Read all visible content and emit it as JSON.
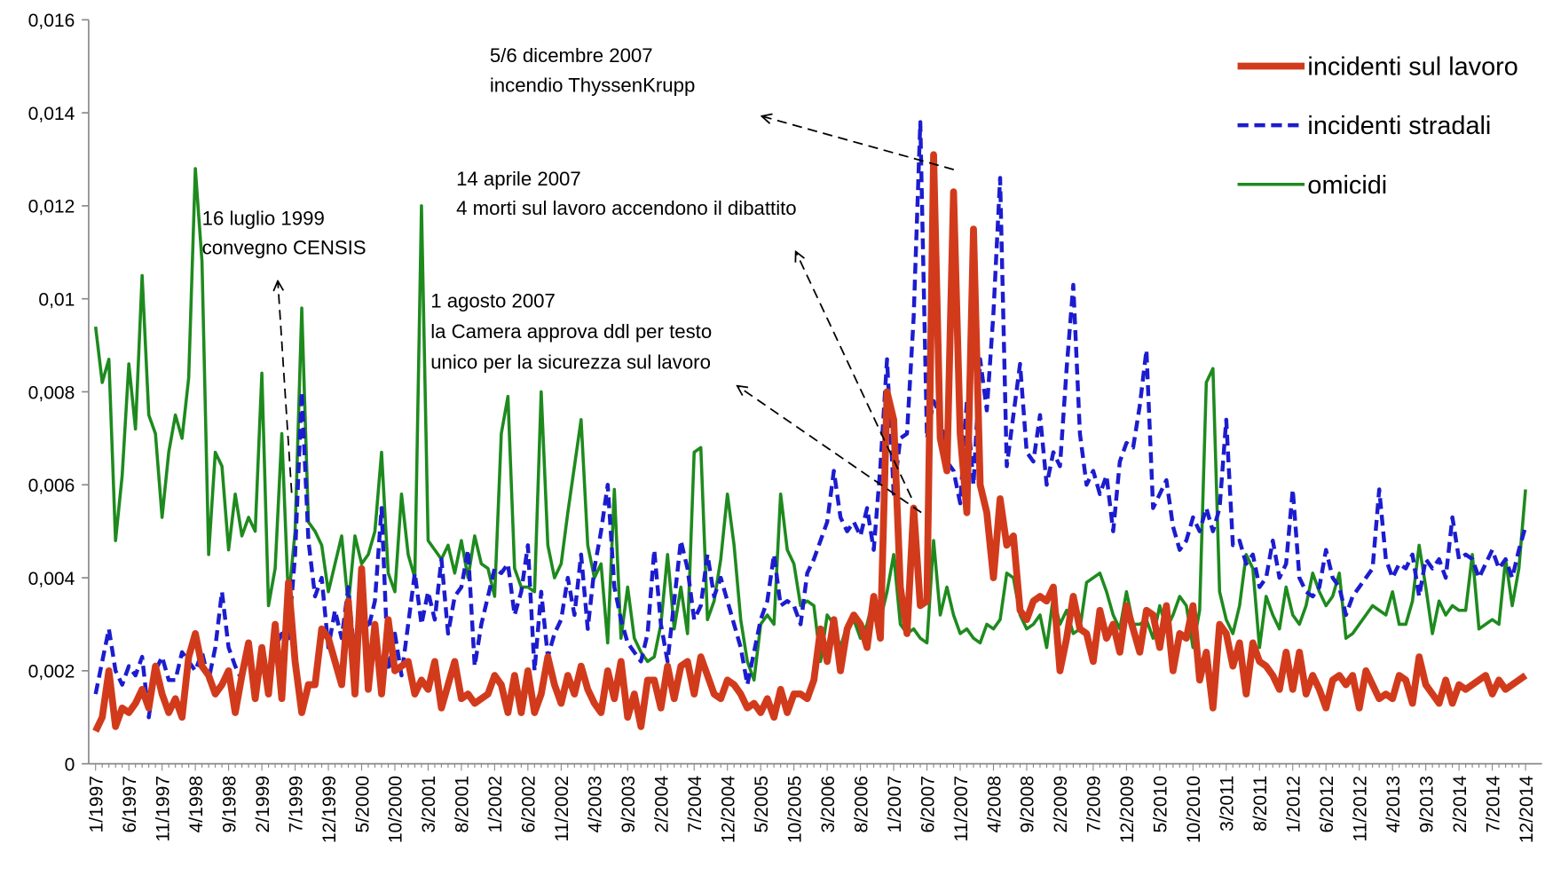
{
  "chart_data": {
    "type": "line",
    "categories": [
      "1/1997",
      null,
      null,
      null,
      null,
      "6/1997",
      null,
      null,
      null,
      null,
      "11/1997",
      null,
      null,
      null,
      null,
      "4/1998",
      null,
      null,
      null,
      null,
      "9/1998",
      null,
      null,
      null,
      null,
      "2/1999",
      null,
      null,
      null,
      null,
      "7/1999",
      null,
      null,
      null,
      null,
      "12/1999",
      null,
      null,
      null,
      null,
      "5/2000",
      null,
      null,
      null,
      null,
      "10/2000",
      null,
      null,
      null,
      null,
      "3/2001",
      null,
      null,
      null,
      null,
      "8/2001",
      null,
      null,
      null,
      null,
      "1/2002",
      null,
      null,
      null,
      null,
      "6/2002",
      null,
      null,
      null,
      null,
      "11/2002",
      null,
      null,
      null,
      null,
      "4/2003",
      null,
      null,
      null,
      null,
      "9/2003",
      null,
      null,
      null,
      null,
      "2/2004",
      null,
      null,
      null,
      null,
      "7/2004",
      null,
      null,
      null,
      null,
      "12/2004",
      null,
      null,
      null,
      null,
      "5/2005",
      null,
      null,
      null,
      null,
      "10/2005",
      null,
      null,
      null,
      null,
      "3/2006",
      null,
      null,
      null,
      null,
      "8/2006",
      null,
      null,
      null,
      null,
      "1/2007",
      null,
      null,
      null,
      null,
      "6/2007",
      null,
      null,
      null,
      null,
      "11/2007",
      null,
      null,
      null,
      null,
      "4/2008",
      null,
      null,
      null,
      null,
      "9/2008",
      null,
      null,
      null,
      null,
      "2/2009",
      null,
      null,
      null,
      null,
      "7/2009",
      null,
      null,
      null,
      null,
      "12/2009",
      null,
      null,
      null,
      null,
      "5/2010",
      null,
      null,
      null,
      null,
      "10/2010",
      null,
      null,
      null,
      null,
      "3/2011",
      null,
      null,
      null,
      null,
      "8/2011",
      null,
      null,
      null,
      null,
      "1/2012",
      null,
      null,
      null,
      null,
      "6/2012",
      null,
      null,
      null,
      null,
      "11/2012",
      null,
      null,
      null,
      null,
      "4/2013",
      null,
      null,
      null,
      null,
      "9/2013",
      null,
      null,
      null,
      null,
      "2/2014",
      null,
      null,
      null,
      null,
      "7/2014",
      null,
      null,
      null,
      null,
      "12/2014"
    ],
    "series": [
      {
        "name": "incidenti sul lavoro",
        "color": "#d13b1c",
        "style": "solid-thick",
        "values": [
          0.0007,
          0.001,
          0.002,
          0.0008,
          0.0012,
          0.0011,
          0.0013,
          0.0016,
          0.0012,
          0.0021,
          0.0015,
          0.0011,
          0.0014,
          0.001,
          0.0023,
          0.0028,
          0.0021,
          0.0019,
          0.0015,
          0.0017,
          0.002,
          0.0011,
          0.0019,
          0.0026,
          0.0014,
          0.0025,
          0.0015,
          0.003,
          0.0014,
          0.0039,
          0.0022,
          0.0011,
          0.0017,
          0.0017,
          0.0029,
          0.0027,
          0.0022,
          0.0017,
          0.0035,
          0.0015,
          0.0042,
          0.0016,
          0.003,
          0.0015,
          0.0031,
          0.002,
          0.0021,
          0.0022,
          0.0015,
          0.0018,
          0.0016,
          0.0022,
          0.0012,
          0.0017,
          0.0022,
          0.0014,
          0.0015,
          0.0013,
          0.0014,
          0.0015,
          0.0019,
          0.0017,
          0.0011,
          0.0019,
          0.0011,
          0.002,
          0.0011,
          0.0015,
          0.0023,
          0.0017,
          0.0013,
          0.0019,
          0.0015,
          0.0021,
          0.0016,
          0.0013,
          0.0011,
          0.002,
          0.0014,
          0.0022,
          0.001,
          0.0015,
          0.0008,
          0.0018,
          0.0018,
          0.0012,
          0.0021,
          0.0014,
          0.0021,
          0.0022,
          0.0015,
          0.0023,
          0.0019,
          0.0015,
          0.0014,
          0.0018,
          0.0017,
          0.0015,
          0.0012,
          0.0013,
          0.0011,
          0.0014,
          0.001,
          0.0016,
          0.0011,
          0.0015,
          0.0015,
          0.0014,
          0.0018,
          0.0029,
          0.0022,
          0.0031,
          0.002,
          0.0029,
          0.0032,
          0.003,
          0.0025,
          0.0036,
          0.0027,
          0.008,
          0.0074,
          0.0038,
          0.0028,
          0.0055,
          0.0034,
          0.0035,
          0.0131,
          0.007,
          0.0063,
          0.0123,
          0.0071,
          0.0054,
          0.0115,
          0.006,
          0.0054,
          0.004,
          0.0057,
          0.0047,
          0.0049,
          0.0033,
          0.0031,
          0.0035,
          0.0036,
          0.0035,
          0.0038,
          0.002,
          0.0027,
          0.0036,
          0.0029,
          0.0028,
          0.0022,
          0.0033,
          0.0027,
          0.003,
          0.0024,
          0.0034,
          0.0029,
          0.0024,
          0.0033,
          0.0032,
          0.0025,
          0.0034,
          0.002,
          0.0028,
          0.0027,
          0.0034,
          0.0018,
          0.0024,
          0.0012,
          0.003,
          0.0028,
          0.0021,
          0.0026,
          0.0015,
          0.0026,
          0.0022,
          0.0021,
          0.0019,
          0.0016,
          0.0024,
          0.0016,
          0.0024,
          0.0015,
          0.0019,
          0.0016,
          0.0012,
          0.0018,
          0.0019,
          0.0017,
          0.0019,
          0.0012,
          0.002,
          0.0017,
          0.0014,
          0.0015,
          0.0014,
          0.0019,
          0.0018,
          0.0013,
          0.0023,
          0.0017,
          0.0015,
          0.0013,
          0.0018,
          0.0013,
          0.0017,
          0.0016,
          0.0017,
          0.0018,
          0.0019,
          0.0015,
          0.0018,
          0.0016,
          0.0017,
          0.0018,
          0.0019
        ]
      },
      {
        "name": "incidenti stradali",
        "color": "#1c1ccf",
        "style": "dashed",
        "values": [
          0.0015,
          0.0022,
          0.0029,
          0.002,
          0.0017,
          0.0021,
          0.0019,
          0.0023,
          0.001,
          0.002,
          0.0023,
          0.0018,
          0.0018,
          0.0024,
          0.0022,
          0.002,
          0.0024,
          0.0018,
          0.0025,
          0.0037,
          0.0025,
          0.0021,
          0.0018,
          0.0024,
          0.0018,
          0.0022,
          0.0017,
          0.0025,
          0.0028,
          0.0027,
          0.0045,
          0.008,
          0.0048,
          0.0036,
          0.004,
          0.0025,
          0.0033,
          0.0027,
          0.0038,
          0.0022,
          0.0034,
          0.0029,
          0.0035,
          0.0055,
          0.002,
          0.0028,
          0.0019,
          0.003,
          0.0041,
          0.003,
          0.0037,
          0.0031,
          0.0044,
          0.0028,
          0.0036,
          0.0038,
          0.0046,
          0.0021,
          0.003,
          0.0036,
          0.0042,
          0.0041,
          0.0043,
          0.0032,
          0.0037,
          0.0047,
          0.002,
          0.0037,
          0.0023,
          0.0028,
          0.0031,
          0.004,
          0.0032,
          0.0045,
          0.0029,
          0.0042,
          0.005,
          0.006,
          0.0038,
          0.0031,
          0.0026,
          0.0024,
          0.0022,
          0.0028,
          0.0046,
          0.003,
          0.0022,
          0.0035,
          0.0048,
          0.0042,
          0.0031,
          0.0034,
          0.0045,
          0.0036,
          0.004,
          0.0035,
          0.003,
          0.0025,
          0.0017,
          0.0024,
          0.0031,
          0.0035,
          0.0045,
          0.0034,
          0.0035,
          0.0034,
          0.003,
          0.0041,
          0.0044,
          0.0048,
          0.0052,
          0.0063,
          0.0053,
          0.005,
          0.0052,
          0.0049,
          0.0055,
          0.0046,
          0.0064,
          0.0087,
          0.0058,
          0.007,
          0.0071,
          0.0096,
          0.0138,
          0.007,
          0.0078,
          0.0075,
          0.0065,
          0.0063,
          0.0056,
          0.0078,
          0.006,
          0.0087,
          0.0076,
          0.0097,
          0.0126,
          0.0064,
          0.0075,
          0.0086,
          0.0067,
          0.0065,
          0.0075,
          0.006,
          0.0067,
          0.0064,
          0.0085,
          0.0103,
          0.0071,
          0.006,
          0.0063,
          0.0058,
          0.0062,
          0.005,
          0.0065,
          0.0069,
          0.0068,
          0.0077,
          0.0089,
          0.0055,
          0.0058,
          0.0061,
          0.0051,
          0.0046,
          0.0048,
          0.0053,
          0.005,
          0.0055,
          0.005,
          0.0055,
          0.0074,
          0.0047,
          0.0048,
          0.0043,
          0.0045,
          0.0038,
          0.004,
          0.0048,
          0.004,
          0.0043,
          0.0059,
          0.004,
          0.0037,
          0.0036,
          0.0038,
          0.0046,
          0.004,
          0.0038,
          0.0032,
          0.0036,
          0.0038,
          0.004,
          0.0042,
          0.0059,
          0.0044,
          0.004,
          0.0043,
          0.0042,
          0.0045,
          0.0036,
          0.0044,
          0.0042,
          0.0044,
          0.004,
          0.0053,
          0.0044,
          0.0045,
          0.0044,
          0.004,
          0.0043,
          0.0046,
          0.0042,
          0.0044,
          0.004,
          0.0046,
          0.0051
        ]
      },
      {
        "name": "omicidi",
        "color": "#1e8a1e",
        "style": "solid",
        "values": [
          0.0094,
          0.0082,
          0.0087,
          0.0048,
          0.0062,
          0.0086,
          0.0072,
          0.0105,
          0.0075,
          0.0071,
          0.0053,
          0.0067,
          0.0075,
          0.007,
          0.0083,
          0.0128,
          0.0108,
          0.0045,
          0.0067,
          0.0064,
          0.0046,
          0.0058,
          0.0049,
          0.0053,
          0.005,
          0.0084,
          0.0034,
          0.0042,
          0.0071,
          0.0035,
          0.005,
          0.0098,
          0.0052,
          0.005,
          0.0047,
          0.0037,
          0.0043,
          0.0049,
          0.0034,
          0.0049,
          0.0043,
          0.0045,
          0.005,
          0.0067,
          0.0041,
          0.0037,
          0.0058,
          0.0045,
          0.004,
          0.012,
          0.0048,
          0.0046,
          0.0044,
          0.0047,
          0.0041,
          0.0048,
          0.004,
          0.0049,
          0.0043,
          0.0042,
          0.0036,
          0.0071,
          0.0079,
          0.0042,
          0.0038,
          0.0038,
          0.0037,
          0.008,
          0.0047,
          0.004,
          0.0043,
          0.0054,
          0.0064,
          0.0074,
          0.0047,
          0.004,
          0.0043,
          0.0026,
          0.0059,
          0.0027,
          0.0038,
          0.0027,
          0.0024,
          0.0022,
          0.0023,
          0.003,
          0.0045,
          0.0029,
          0.0038,
          0.0028,
          0.0067,
          0.0068,
          0.0031,
          0.0035,
          0.0044,
          0.0058,
          0.0047,
          0.0031,
          0.0022,
          0.0018,
          0.003,
          0.0032,
          0.003,
          0.0058,
          0.0046,
          0.0043,
          0.0034,
          0.0035,
          0.0034,
          0.0022,
          0.0032,
          0.003,
          0.0025,
          0.003,
          0.0031,
          0.0027,
          0.003,
          0.0036,
          0.0031,
          0.0037,
          0.0045,
          0.003,
          0.0028,
          0.0029,
          0.0027,
          0.0026,
          0.0048,
          0.0032,
          0.0038,
          0.0032,
          0.0028,
          0.0029,
          0.0027,
          0.0026,
          0.003,
          0.0029,
          0.0031,
          0.0041,
          0.004,
          0.0032,
          0.0029,
          0.003,
          0.0032,
          0.0025,
          0.0036,
          0.003,
          0.0033,
          0.0028,
          0.0029,
          0.0039,
          0.004,
          0.0041,
          0.0037,
          0.0032,
          0.0029,
          0.0037,
          0.003,
          0.003,
          0.0031,
          0.0027,
          0.0034,
          0.0029,
          0.0032,
          0.0036,
          0.0034,
          0.0025,
          0.0033,
          0.0082,
          0.0085,
          0.0037,
          0.0031,
          0.0028,
          0.0034,
          0.0045,
          0.0042,
          0.0025,
          0.0036,
          0.0032,
          0.0029,
          0.0038,
          0.0032,
          0.003,
          0.0034,
          0.0041,
          0.0037,
          0.0034,
          0.0036,
          0.0041,
          0.0027,
          0.0028,
          0.003,
          0.0032,
          0.0034,
          0.0033,
          0.0032,
          0.0037,
          0.003,
          0.003,
          0.0035,
          0.0047,
          0.0038,
          0.0028,
          0.0035,
          0.0032,
          0.0034,
          0.0033,
          0.0033,
          0.0045,
          0.0029,
          0.003,
          0.0031,
          0.003,
          0.0044,
          0.0034,
          0.0042,
          0.0059
        ]
      }
    ],
    "ylim": [
      0,
      0.016
    ],
    "yticks": [
      0,
      {
        "value": 0.002,
        "label": "0,002"
      },
      {
        "value": 0.004,
        "label": "0,004"
      },
      {
        "value": 0.006,
        "label": "0,006"
      },
      {
        "value": 0.008,
        "label": "0,008"
      },
      {
        "value": 0.01,
        "label": "0,01"
      },
      {
        "value": 0.012,
        "label": "0,012"
      },
      {
        "value": 0.014,
        "label": "0,014"
      },
      {
        "value": 0.016,
        "label": "0,016"
      }
    ],
    "grid": false,
    "legend": "top-right",
    "annotations": [
      {
        "lines": [
          "16 luglio 1999",
          "convegno CENSIS"
        ]
      },
      {
        "lines": [
          "1 agosto 2007",
          "la Camera approva ddl per testo",
          "unico per la sicurezza sul lavoro"
        ]
      },
      {
        "lines": [
          "14 aprile 2007",
          "4 morti sul lavoro accendono il dibattito"
        ]
      },
      {
        "lines": [
          "5/6 dicembre 2007",
          "incendio ThyssenKrupp"
        ]
      }
    ]
  }
}
